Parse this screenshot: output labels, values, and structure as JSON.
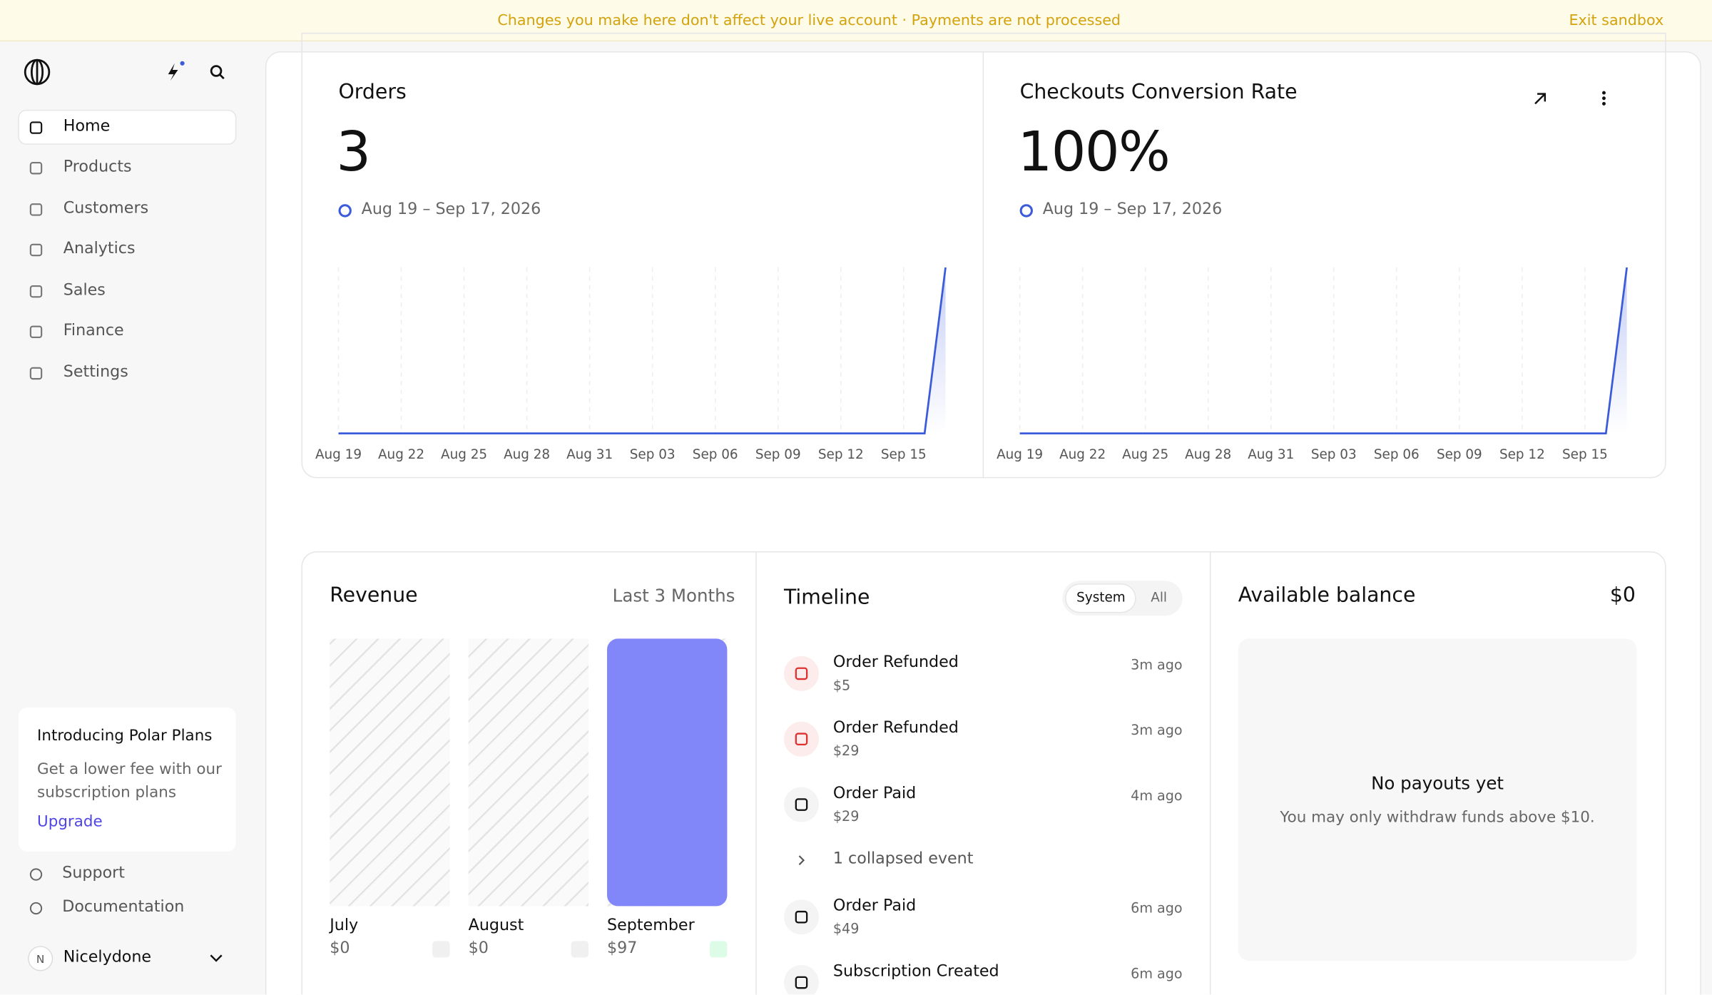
{
  "banner": {
    "message": "Changes you make here don't affect your live account · Payments are not processed",
    "exit": "Exit sandbox"
  },
  "sidebar": {
    "nav": [
      "Home",
      "Products",
      "Customers",
      "Analytics",
      "Sales",
      "Finance",
      "Settings"
    ],
    "promo": {
      "title": "Introducing Polar Plans",
      "text": "Get a lower fee with our subscription plans",
      "link": "Upgrade"
    },
    "links": [
      "Support",
      "Documentation"
    ],
    "user": {
      "initial": "N",
      "name": "Nicelydone"
    }
  },
  "chart_data": [
    {
      "type": "line",
      "title": "Orders",
      "total": "3",
      "date_range": "Aug 19 – Sep 17, 2026",
      "color": "#3b5bdb",
      "categories": [
        "Aug 19",
        null,
        null,
        "Aug 22",
        null,
        null,
        "Aug 25",
        null,
        null,
        "Aug 28",
        null,
        null,
        "Aug 31",
        null,
        null,
        "Sep 03",
        null,
        null,
        "Sep 06",
        null,
        null,
        "Sep 09",
        null,
        null,
        "Sep 12",
        null,
        null,
        "Sep 15",
        null,
        null
      ],
      "values": [
        0,
        0,
        0,
        0,
        0,
        0,
        0,
        0,
        0,
        0,
        0,
        0,
        0,
        0,
        0,
        0,
        0,
        0,
        0,
        0,
        0,
        0,
        0,
        0,
        0,
        0,
        0,
        0,
        0,
        3
      ]
    },
    {
      "type": "line",
      "title": "Checkouts Conversion Rate",
      "total": "100%",
      "date_range": "Aug 19 – Sep 17, 2026",
      "color": "#3b5bdb",
      "categories": [
        "Aug 19",
        null,
        null,
        "Aug 22",
        null,
        null,
        "Aug 25",
        null,
        null,
        "Aug 28",
        null,
        null,
        "Aug 31",
        null,
        null,
        "Sep 03",
        null,
        null,
        "Sep 06",
        null,
        null,
        "Sep 09",
        null,
        null,
        "Sep 12",
        null,
        null,
        "Sep 15",
        null,
        null
      ],
      "values": [
        0,
        0,
        0,
        0,
        0,
        0,
        0,
        0,
        0,
        0,
        0,
        0,
        0,
        0,
        0,
        0,
        0,
        0,
        0,
        0,
        0,
        0,
        0,
        0,
        0,
        0,
        0,
        0,
        0,
        100
      ]
    },
    {
      "type": "bar",
      "title": "Revenue",
      "subtitle": "Last 3 Months",
      "color": "#8186f8",
      "categories": [
        "July",
        "August",
        "September"
      ],
      "values": [
        0,
        0,
        97
      ],
      "value_labels": [
        "$0",
        "$0",
        "$97"
      ]
    }
  ],
  "timeline": {
    "title": "Timeline",
    "tabs": [
      "System",
      "All"
    ],
    "events": [
      {
        "title": "Order Refunded",
        "amount": "$5",
        "time": "3m ago"
      },
      {
        "title": "Order Refunded",
        "amount": "$29",
        "time": "3m ago"
      },
      {
        "title": "Order Paid",
        "amount": "$29",
        "time": "4m ago"
      },
      {
        "title": "1 collapsed event"
      },
      {
        "title": "Order Paid",
        "amount": "$49",
        "time": "6m ago"
      },
      {
        "title": "Subscription Created",
        "time": "6m ago"
      }
    ]
  },
  "balance": {
    "title": "Available balance",
    "amount": "$0",
    "empty_title": "No payouts yet",
    "empty_text": "You may only withdraw funds above $10."
  }
}
